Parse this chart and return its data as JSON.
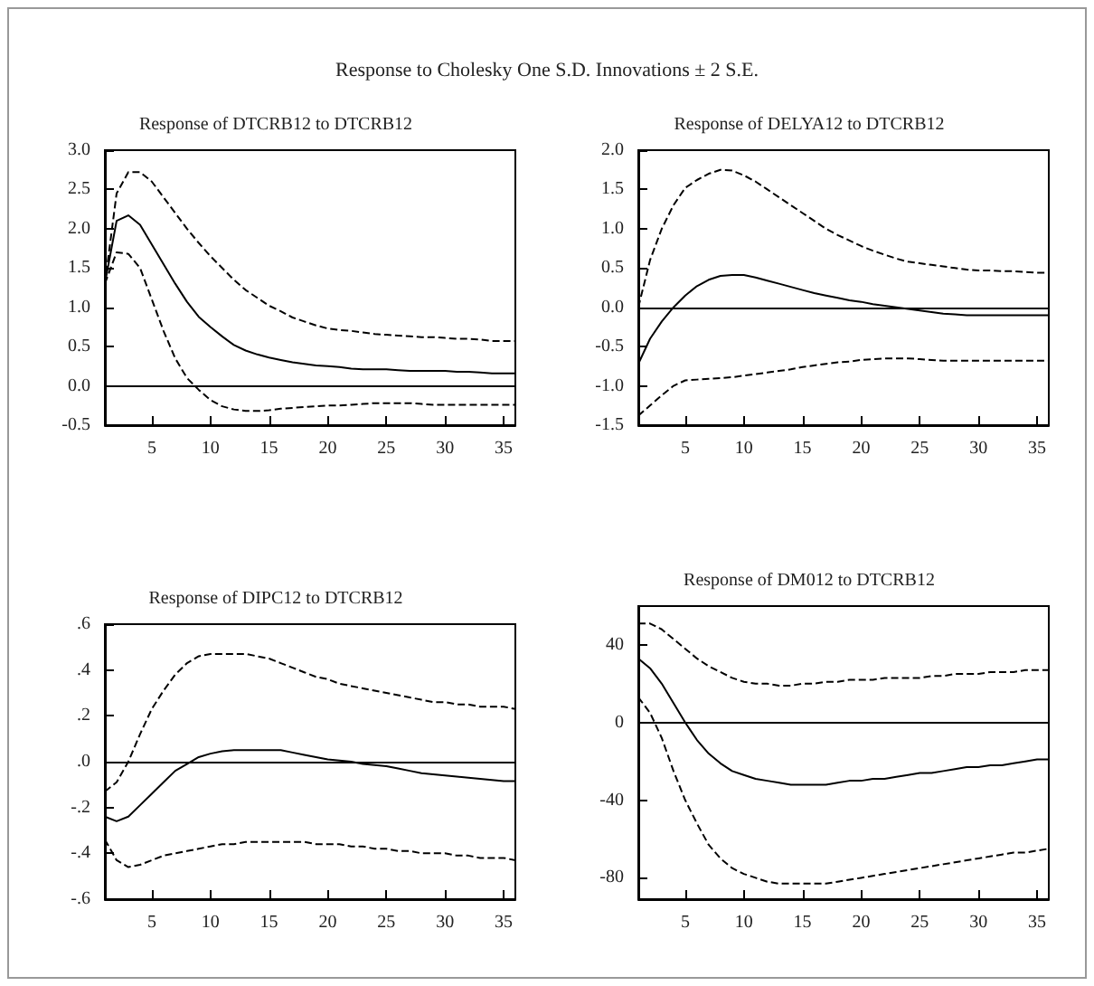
{
  "chart_data": [
    {
      "type": "line",
      "title": "Response of DTCRB12 to DTCRB12",
      "annotations": [
        "Response to Cholesky One S.D. Innovations ± 2 S.E."
      ],
      "x": [
        1,
        2,
        3,
        4,
        5,
        6,
        7,
        8,
        9,
        10,
        11,
        12,
        13,
        14,
        15,
        16,
        17,
        18,
        19,
        20,
        21,
        22,
        23,
        24,
        25,
        26,
        27,
        28,
        29,
        30,
        31,
        32,
        33,
        34,
        35,
        36
      ],
      "xlim": [
        1,
        36
      ],
      "xticks": [
        5,
        10,
        15,
        20,
        25,
        30,
        35
      ],
      "ylim": [
        -0.5,
        3.0
      ],
      "yticks": [
        {
          "value": -0.5,
          "label": "-0.5"
        },
        {
          "value": 0,
          "label": "0.0"
        },
        {
          "value": 0.5,
          "label": "0.5"
        },
        {
          "value": 1,
          "label": "1.0"
        },
        {
          "value": 1.5,
          "label": "1.5"
        },
        {
          "value": 2,
          "label": "2.0"
        },
        {
          "value": 2.5,
          "label": "2.5"
        },
        {
          "value": 3,
          "label": "3.0"
        }
      ],
      "grid": false,
      "marker": "none",
      "ref_lines": [
        {
          "axis": "y",
          "value": 0,
          "color": "#000000"
        }
      ],
      "series": [
        {
          "color": "#000000",
          "line_style": "solid",
          "values": [
            1.3,
            2.1,
            2.17,
            2.05,
            1.8,
            1.55,
            1.3,
            1.07,
            0.88,
            0.75,
            0.63,
            0.52,
            0.45,
            0.4,
            0.36,
            0.33,
            0.3,
            0.28,
            0.26,
            0.25,
            0.24,
            0.22,
            0.21,
            0.21,
            0.21,
            0.2,
            0.19,
            0.19,
            0.19,
            0.19,
            0.18,
            0.18,
            0.17,
            0.16,
            0.16,
            0.16
          ]
        },
        {
          "color": "#000000",
          "line_style": "dashed",
          "values": [
            1.3,
            2.45,
            2.72,
            2.72,
            2.6,
            2.4,
            2.2,
            2.0,
            1.82,
            1.65,
            1.5,
            1.35,
            1.22,
            1.12,
            1.02,
            0.95,
            0.87,
            0.82,
            0.77,
            0.73,
            0.71,
            0.7,
            0.68,
            0.66,
            0.65,
            0.64,
            0.63,
            0.62,
            0.62,
            0.61,
            0.6,
            0.6,
            0.59,
            0.57,
            0.57,
            0.57
          ]
        },
        {
          "color": "#000000",
          "line_style": "dashed",
          "values": [
            1.3,
            1.7,
            1.68,
            1.5,
            1.1,
            0.7,
            0.35,
            0.1,
            -0.05,
            -0.18,
            -0.26,
            -0.3,
            -0.32,
            -0.32,
            -0.31,
            -0.29,
            -0.28,
            -0.27,
            -0.26,
            -0.25,
            -0.25,
            -0.24,
            -0.23,
            -0.22,
            -0.22,
            -0.22,
            -0.22,
            -0.23,
            -0.24,
            -0.24,
            -0.24,
            -0.24,
            -0.24,
            -0.24,
            -0.24,
            -0.24
          ]
        }
      ]
    },
    {
      "type": "line",
      "title": "Response of DELYA12 to DTCRB12",
      "x": [
        1,
        2,
        3,
        4,
        5,
        6,
        7,
        8,
        9,
        10,
        11,
        12,
        13,
        14,
        15,
        16,
        17,
        18,
        19,
        20,
        21,
        22,
        23,
        24,
        25,
        26,
        27,
        28,
        29,
        30,
        31,
        32,
        33,
        34,
        35,
        36
      ],
      "xlim": [
        1,
        36
      ],
      "xticks": [
        5,
        10,
        15,
        20,
        25,
        30,
        35
      ],
      "ylim": [
        -1.5,
        2.0
      ],
      "yticks": [
        {
          "value": -1.5,
          "label": "-1.5"
        },
        {
          "value": -1,
          "label": "-1.0"
        },
        {
          "value": -0.5,
          "label": "-0.5"
        },
        {
          "value": 0,
          "label": "0.0"
        },
        {
          "value": 0.5,
          "label": "0.5"
        },
        {
          "value": 1,
          "label": "1.0"
        },
        {
          "value": 1.5,
          "label": "1.5"
        },
        {
          "value": 2,
          "label": "2.0"
        }
      ],
      "grid": false,
      "marker": "none",
      "ref_lines": [
        {
          "axis": "y",
          "value": 0,
          "color": "#000000"
        }
      ],
      "series": [
        {
          "color": "#000000",
          "line_style": "solid",
          "values": [
            -0.72,
            -0.4,
            -0.18,
            0.0,
            0.15,
            0.27,
            0.35,
            0.4,
            0.41,
            0.41,
            0.38,
            0.34,
            0.3,
            0.26,
            0.22,
            0.18,
            0.15,
            0.12,
            0.09,
            0.07,
            0.04,
            0.02,
            0.0,
            -0.02,
            -0.04,
            -0.06,
            -0.08,
            -0.09,
            -0.1,
            -0.1,
            -0.1,
            -0.1,
            -0.1,
            -0.1,
            -0.1,
            -0.1
          ]
        },
        {
          "color": "#000000",
          "line_style": "dashed",
          "values": [
            0.0,
            0.6,
            1.0,
            1.3,
            1.52,
            1.62,
            1.7,
            1.75,
            1.74,
            1.68,
            1.6,
            1.5,
            1.4,
            1.3,
            1.2,
            1.1,
            1.0,
            0.92,
            0.85,
            0.78,
            0.72,
            0.67,
            0.62,
            0.58,
            0.56,
            0.54,
            0.52,
            0.5,
            0.48,
            0.47,
            0.47,
            0.46,
            0.46,
            0.45,
            0.44,
            0.44
          ]
        },
        {
          "color": "#000000",
          "line_style": "dashed",
          "values": [
            -1.38,
            -1.25,
            -1.12,
            -1.0,
            -0.93,
            -0.92,
            -0.91,
            -0.9,
            -0.89,
            -0.87,
            -0.85,
            -0.83,
            -0.81,
            -0.79,
            -0.76,
            -0.74,
            -0.72,
            -0.7,
            -0.69,
            -0.67,
            -0.66,
            -0.65,
            -0.65,
            -0.65,
            -0.66,
            -0.67,
            -0.68,
            -0.68,
            -0.68,
            -0.68,
            -0.68,
            -0.68,
            -0.68,
            -0.68,
            -0.68,
            -0.68
          ]
        }
      ]
    },
    {
      "type": "line",
      "title": "Response of DIPC12 to DTCRB12",
      "x": [
        1,
        2,
        3,
        4,
        5,
        6,
        7,
        8,
        9,
        10,
        11,
        12,
        13,
        14,
        15,
        16,
        17,
        18,
        19,
        20,
        21,
        22,
        23,
        24,
        25,
        26,
        27,
        28,
        29,
        30,
        31,
        32,
        33,
        34,
        35,
        36
      ],
      "xlim": [
        1,
        36
      ],
      "xticks": [
        5,
        10,
        15,
        20,
        25,
        30,
        35
      ],
      "ylim": [
        -0.6,
        0.6
      ],
      "yticks": [
        {
          "value": -0.6,
          "label": "-.6"
        },
        {
          "value": -0.4,
          "label": "-.4"
        },
        {
          "value": -0.2,
          "label": "-.2"
        },
        {
          "value": 0,
          "label": ".0"
        },
        {
          "value": 0.2,
          "label": ".2"
        },
        {
          "value": 0.4,
          "label": ".4"
        },
        {
          "value": 0.6,
          "label": ".6"
        }
      ],
      "grid": false,
      "marker": "none",
      "ref_lines": [
        {
          "axis": "y",
          "value": 0,
          "color": "#000000"
        }
      ],
      "series": [
        {
          "color": "#000000",
          "line_style": "solid",
          "values": [
            -0.24,
            -0.26,
            -0.24,
            -0.19,
            -0.14,
            -0.09,
            -0.04,
            -0.01,
            0.02,
            0.035,
            0.045,
            0.05,
            0.05,
            0.05,
            0.05,
            0.05,
            0.04,
            0.03,
            0.02,
            0.01,
            0.005,
            0.0,
            -0.01,
            -0.015,
            -0.02,
            -0.03,
            -0.04,
            -0.05,
            -0.055,
            -0.06,
            -0.065,
            -0.07,
            -0.075,
            -0.08,
            -0.085,
            -0.085
          ]
        },
        {
          "color": "#000000",
          "line_style": "dashed",
          "values": [
            -0.13,
            -0.09,
            0.0,
            0.12,
            0.23,
            0.31,
            0.38,
            0.43,
            0.46,
            0.47,
            0.47,
            0.47,
            0.47,
            0.46,
            0.45,
            0.43,
            0.41,
            0.39,
            0.37,
            0.36,
            0.34,
            0.33,
            0.32,
            0.31,
            0.3,
            0.29,
            0.28,
            0.27,
            0.26,
            0.26,
            0.25,
            0.25,
            0.24,
            0.24,
            0.24,
            0.23
          ]
        },
        {
          "color": "#000000",
          "line_style": "dashed",
          "values": [
            -0.34,
            -0.43,
            -0.46,
            -0.45,
            -0.43,
            -0.41,
            -0.4,
            -0.39,
            -0.38,
            -0.37,
            -0.36,
            -0.36,
            -0.35,
            -0.35,
            -0.35,
            -0.35,
            -0.35,
            -0.35,
            -0.36,
            -0.36,
            -0.36,
            -0.37,
            -0.37,
            -0.38,
            -0.38,
            -0.39,
            -0.39,
            -0.4,
            -0.4,
            -0.4,
            -0.41,
            -0.41,
            -0.42,
            -0.42,
            -0.42,
            -0.43
          ]
        }
      ]
    },
    {
      "type": "line",
      "title": "Response of DM012 to DTCRB12",
      "x": [
        1,
        2,
        3,
        4,
        5,
        6,
        7,
        8,
        9,
        10,
        11,
        12,
        13,
        14,
        15,
        16,
        17,
        18,
        19,
        20,
        21,
        22,
        23,
        24,
        25,
        26,
        27,
        28,
        29,
        30,
        31,
        32,
        33,
        34,
        35,
        36
      ],
      "xlim": [
        1,
        36
      ],
      "xticks": [
        5,
        10,
        15,
        20,
        25,
        30,
        35
      ],
      "ylim": [
        -91,
        60
      ],
      "yticks": [
        -80,
        -40,
        0,
        40
      ],
      "grid": false,
      "marker": "none",
      "ref_lines": [
        {
          "axis": "y",
          "value": 0,
          "color": "#000000"
        }
      ],
      "series": [
        {
          "color": "#000000",
          "line_style": "solid",
          "values": [
            33,
            28,
            20,
            10,
            0,
            -9,
            -16,
            -21,
            -25,
            -27,
            -29,
            -30,
            -31,
            -32,
            -32,
            -32,
            -32,
            -31,
            -30,
            -30,
            -29,
            -29,
            -28,
            -27,
            -26,
            -26,
            -25,
            -24,
            -23,
            -23,
            -22,
            -22,
            -21,
            -20,
            -19,
            -19
          ]
        },
        {
          "color": "#000000",
          "line_style": "dashed",
          "values": [
            51,
            51,
            48,
            43,
            38,
            33,
            29,
            26,
            23,
            21,
            20,
            20,
            19,
            19,
            20,
            20,
            21,
            21,
            22,
            22,
            22,
            23,
            23,
            23,
            23,
            24,
            24,
            25,
            25,
            25,
            26,
            26,
            26,
            27,
            27,
            27
          ]
        },
        {
          "color": "#000000",
          "line_style": "dashed",
          "values": [
            13,
            5,
            -8,
            -25,
            -40,
            -52,
            -63,
            -70,
            -75,
            -78,
            -80,
            -82,
            -83,
            -83,
            -83,
            -83,
            -83,
            -82,
            -81,
            -80,
            -79,
            -78,
            -77,
            -76,
            -75,
            -74,
            -73,
            -72,
            -71,
            -70,
            -69,
            -68,
            -67,
            -67,
            -66,
            -65
          ]
        }
      ]
    }
  ]
}
